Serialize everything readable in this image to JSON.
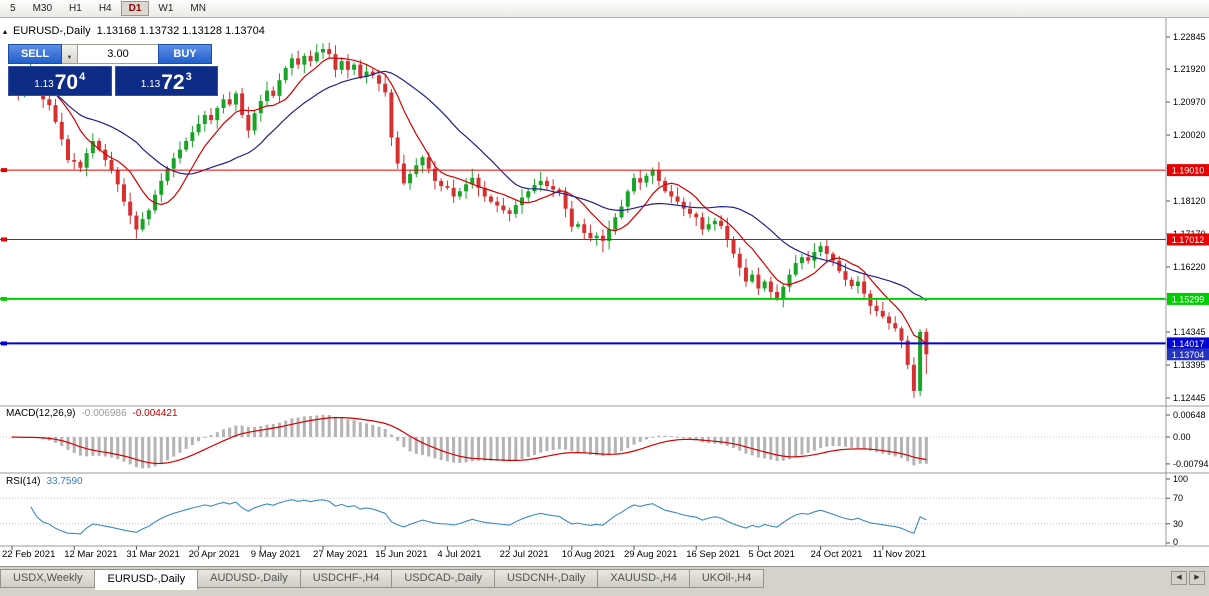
{
  "toolbar": {
    "timeframes": [
      "5",
      "M30",
      "H1",
      "H4",
      "D1",
      "W1",
      "MN"
    ],
    "active": "D1"
  },
  "chart_header": {
    "symbol": "EURUSD-,Daily",
    "ohlc": "1.13168 1.13732 1.13128 1.13704"
  },
  "trade_panel": {
    "sell_label": "SELL",
    "buy_label": "BUY",
    "volume": "3.00",
    "sell_price": {
      "small": "1.13",
      "big": "70",
      "sup": "4"
    },
    "buy_price": {
      "small": "1.13",
      "big": "72",
      "sup": "3"
    }
  },
  "indicators": {
    "macd": {
      "label": "MACD(12,26,9)",
      "value_main": "-0.006986",
      "value_signal": "-0.004421"
    },
    "rsi": {
      "label": "RSI(14)",
      "value": "33.7590"
    }
  },
  "tabs": [
    {
      "label": "USDX,Weekly",
      "active": false
    },
    {
      "label": "EURUSD-,Daily",
      "active": true
    },
    {
      "label": "AUDUSD-,Daily",
      "active": false
    },
    {
      "label": "USDCHF-,H4",
      "active": false
    },
    {
      "label": "USDCAD-,Daily",
      "active": false
    },
    {
      "label": "USDCNH-,Daily",
      "active": false
    },
    {
      "label": "XAUUSD-,H4",
      "active": false
    },
    {
      "label": "UKOil-,H4",
      "active": false
    }
  ],
  "tab_scroll": {
    "left": "◀",
    "right": "▶"
  },
  "chart_data": {
    "type": "candlestick",
    "symbol": "EURUSD-",
    "timeframe": "Daily",
    "ohlc_current": {
      "open": 1.13168,
      "high": 1.13732,
      "low": 1.13128,
      "close": 1.13704
    },
    "closes": [
      1.2158,
      1.212,
      1.2145,
      1.217,
      1.2135,
      1.2105,
      1.2088,
      1.204,
      1.199,
      1.193,
      1.1925,
      1.1908,
      1.195,
      1.1985,
      1.196,
      1.193,
      1.19,
      1.186,
      1.181,
      1.177,
      1.173,
      1.176,
      1.1785,
      1.183,
      1.187,
      1.1905,
      1.1935,
      1.196,
      1.1985,
      1.201,
      1.2034,
      1.206,
      1.2045,
      1.208,
      1.2105,
      1.209,
      1.2122,
      1.206,
      1.2015,
      1.2065,
      1.21,
      1.213,
      1.2115,
      1.216,
      1.2195,
      1.2223,
      1.2205,
      1.223,
      1.2215,
      1.224,
      1.225,
      1.2235,
      1.219,
      1.2215,
      1.219,
      1.2205,
      1.217,
      1.2185,
      1.2174,
      1.215,
      1.2125,
      1.1995,
      1.192,
      1.1863,
      1.189,
      1.1915,
      1.1938,
      1.1905,
      1.187,
      1.1855,
      1.185,
      1.1825,
      1.184,
      1.186,
      1.1879,
      1.185,
      1.1825,
      1.181,
      1.1799,
      1.1785,
      1.1775,
      1.18,
      1.1822,
      1.184,
      1.1858,
      1.187,
      1.1855,
      1.1845,
      1.1838,
      1.179,
      1.1738,
      1.1745,
      1.172,
      1.1705,
      1.1712,
      1.1697,
      1.173,
      1.1765,
      1.1796,
      1.184,
      1.1878,
      1.1865,
      1.1885,
      1.19,
      1.187,
      1.184,
      1.1825,
      1.181,
      1.179,
      1.1775,
      1.1765,
      1.173,
      1.1745,
      1.1755,
      1.174,
      1.17,
      1.166,
      1.162,
      1.158,
      1.16,
      1.156,
      1.158,
      1.155,
      1.153,
      1.1565,
      1.16,
      1.1633,
      1.165,
      1.164,
      1.1665,
      1.1682,
      1.166,
      1.164,
      1.161,
      1.1585,
      1.1567,
      1.158,
      1.1545,
      1.151,
      1.1495,
      1.1479,
      1.146,
      1.1445,
      1.141,
      1.134,
      1.1265,
      1.1435,
      1.13704
    ],
    "extremes": {
      "3": {
        "high": 1.2243
      },
      "20": {
        "low": 1.1704
      },
      "50": {
        "high": 1.2266
      },
      "95": {
        "low": 1.1664
      },
      "103": {
        "high": 1.1909
      },
      "123": {
        "low": 1.1524
      },
      "145": {
        "low": 1.1245
      },
      "147": {
        "high": 1.1445,
        "low": 1.13128
      }
    },
    "candle_colors": {
      "up": "#18a426",
      "down": "#d63031"
    },
    "moving_averages": [
      {
        "period": 8,
        "color": "#d40000"
      },
      {
        "period": 21,
        "color": "#20208e"
      }
    ],
    "price_axis": {
      "ticks": [
        "1.22845",
        "1.21920",
        "1.20970",
        "1.20020",
        "1.19070",
        "1.18120",
        "1.17170",
        "1.16220",
        "1.15270",
        "1.14345",
        "1.13395",
        "1.12445"
      ]
    },
    "levels": [
      {
        "price": 1.1901,
        "label": "1.19010",
        "color": "#e60000",
        "width": 1
      },
      {
        "price": 1.17012,
        "label": "1.17012",
        "color": "#e60000",
        "width": 1
      },
      {
        "price": 1.15299,
        "label": "1.15299",
        "color": "#00ce00",
        "width": 2
      },
      {
        "price": 1.14017,
        "label": "1.14017",
        "color": "#0000d8",
        "width": 2
      }
    ],
    "current_price": {
      "price": 1.13704,
      "label": "1.13704",
      "color": "#2433c0"
    },
    "macd": {
      "fast": 12,
      "slow": 26,
      "signal": 9,
      "histogram_color": "#b4b4b4",
      "signal_color": "#d40000",
      "scale_ticks": [
        "0.00648",
        "0.00",
        "-0.00794"
      ]
    },
    "rsi": {
      "period": 14,
      "color": "#3c8ac8",
      "levels": [
        70,
        30
      ],
      "scale_ticks": [
        "100",
        "70",
        "30",
        "0"
      ]
    },
    "dates": [
      "22 Feb 2021",
      "12 Mar 2021",
      "31 Mar 2021",
      "20 Apr 2021",
      "9 May 2021",
      "27 May 2021",
      "15 Jun 2021",
      "4 Jul 2021",
      "22 Jul 2021",
      "10 Aug 2021",
      "29 Aug 2021",
      "16 Sep 2021",
      "5 Oct 2021",
      "24 Oct 2021",
      "11 Nov 2021"
    ]
  }
}
